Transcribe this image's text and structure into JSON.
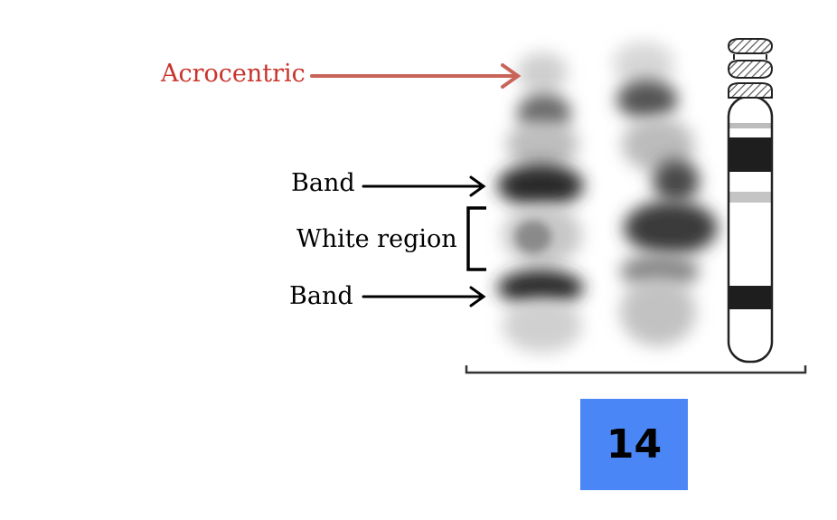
{
  "labels": {
    "acrocentric": "Acrocentric",
    "band_top": "Band",
    "white_region": "White region",
    "band_bottom": "Band"
  },
  "chromosome_number": "14",
  "colors": {
    "acrocentric_text": "#c8342c",
    "acrocentric_arrow": "#c8645a",
    "number_box": "#4a86f5",
    "ideogram_band": "#1e1e1e",
    "ideogram_light_band": "#bcbcbc"
  },
  "icons": {
    "satellite_stalk": "hatched-satellite-icon"
  }
}
